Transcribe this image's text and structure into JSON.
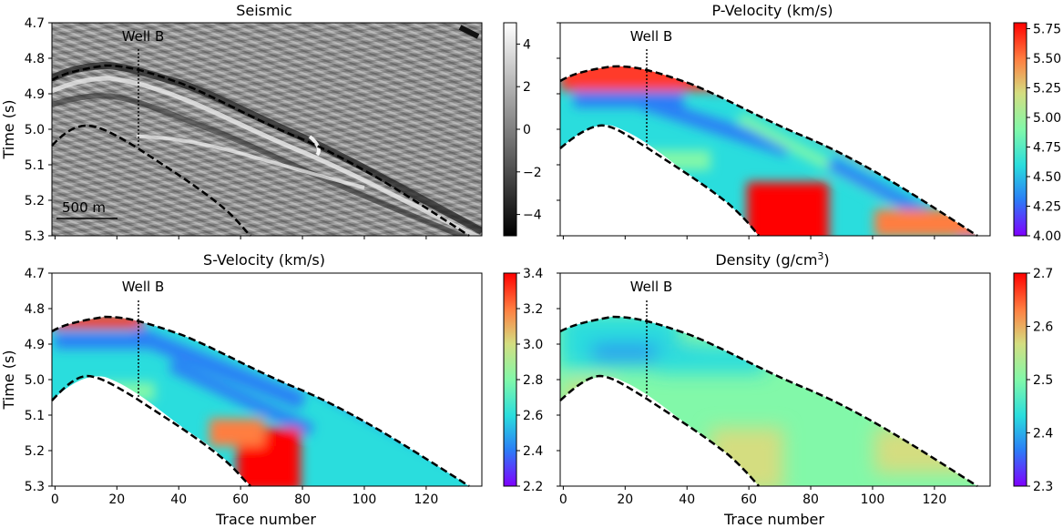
{
  "chart_data": [
    {
      "type": "heatmap",
      "title": "Seismic",
      "ylabel": "Time (s)",
      "xlabel": "",
      "xlim": [
        -1,
        138
      ],
      "ylim": [
        5.3,
        4.7
      ],
      "yticks": [
        "4.7",
        "4.8",
        "4.9",
        "5.0",
        "5.1",
        "5.2",
        "5.3"
      ],
      "xticks": [],
      "well_label": "Well B",
      "scalebar_label": "500 m",
      "colorbar": {
        "min": -5,
        "max": 5,
        "ticks": [
          "4",
          "2",
          "0",
          "−2",
          "−4"
        ],
        "colormap": "gray"
      }
    },
    {
      "type": "heatmap",
      "title": "P-Velocity (km/s)",
      "ylabel": "",
      "xlabel": "",
      "xlim": [
        -1,
        138
      ],
      "ylim": [
        5.3,
        4.7
      ],
      "yticks": [],
      "xticks": [],
      "well_label": "Well B",
      "colorbar": {
        "min": 4.0,
        "max": 5.8,
        "ticks": [
          "5.75",
          "5.50",
          "5.25",
          "5.00",
          "4.75",
          "4.50",
          "4.25",
          "4.00"
        ],
        "colormap": "rainbow"
      }
    },
    {
      "type": "heatmap",
      "title": "S-Velocity (km/s)",
      "ylabel": "Time (s)",
      "xlabel": "Trace number",
      "xlim": [
        -1,
        138
      ],
      "ylim": [
        5.3,
        4.7
      ],
      "yticks": [
        "4.7",
        "4.8",
        "4.9",
        "5.0",
        "5.1",
        "5.2",
        "5.3"
      ],
      "xticks": [
        "0",
        "20",
        "40",
        "60",
        "80",
        "100",
        "120"
      ],
      "well_label": "Well B",
      "colorbar": {
        "min": 2.2,
        "max": 3.4,
        "ticks": [
          "3.4",
          "3.2",
          "3.0",
          "2.8",
          "2.6",
          "2.4",
          "2.2"
        ],
        "colormap": "rainbow"
      }
    },
    {
      "type": "heatmap",
      "title": "Density (g/cm",
      "title_sup": "3",
      "title_end": ")",
      "ylabel": "",
      "xlabel": "Trace number",
      "xlim": [
        -1,
        138
      ],
      "ylim": [
        5.3,
        4.7
      ],
      "yticks": [],
      "xticks": [
        "0",
        "20",
        "40",
        "60",
        "80",
        "100",
        "120"
      ],
      "well_label": "Well B",
      "colorbar": {
        "min": 2.3,
        "max": 2.7,
        "ticks": [
          "2.7",
          "2.6",
          "2.5",
          "2.4",
          "2.3"
        ],
        "colormap": "rainbow"
      }
    }
  ],
  "colors": {
    "rainbow": [
      "#7f00ff",
      "#2b7ef6",
      "#2adddd",
      "#82f8a9",
      "#d4dd80",
      "#ff7e41",
      "#ff0000"
    ],
    "gray": [
      "#000000",
      "#808080",
      "#ffffff"
    ],
    "boundary": "#000000"
  }
}
